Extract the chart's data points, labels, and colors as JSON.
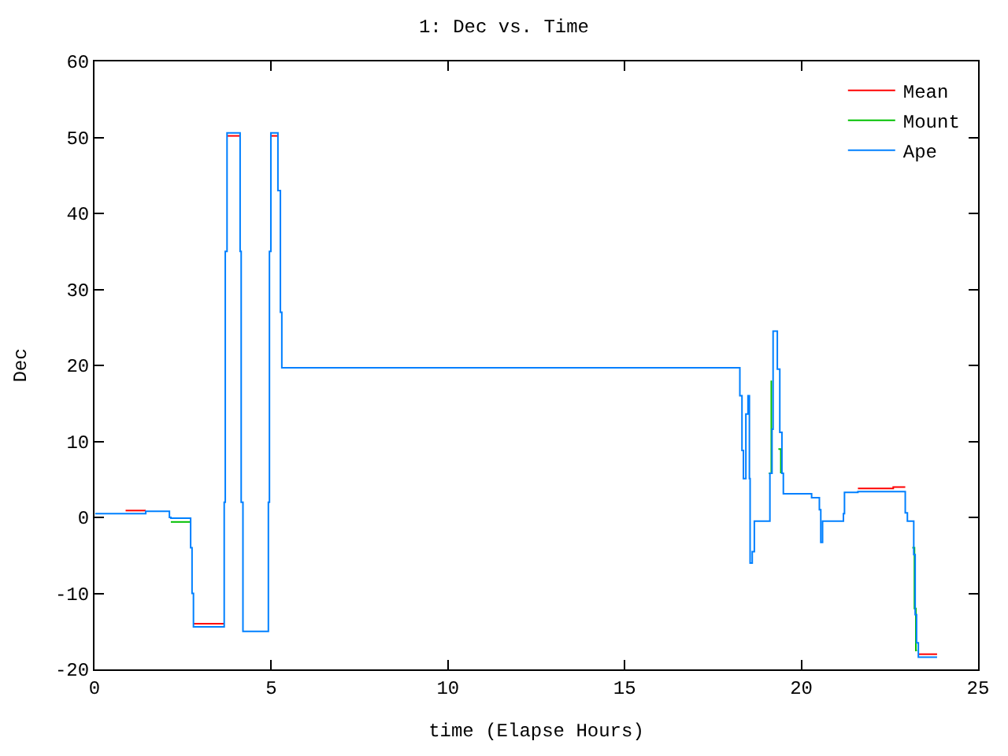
{
  "chart_data": {
    "type": "step",
    "title": "1: Dec vs. Time",
    "xlabel": "time (Elapse Hours)",
    "ylabel": "Dec",
    "xlim": [
      0,
      25
    ],
    "xticks": [
      0,
      5,
      10,
      15,
      20,
      25
    ],
    "ylim": [
      -20,
      60
    ],
    "yticks": [
      -20,
      -10,
      0,
      10,
      20,
      30,
      40,
      50,
      60
    ],
    "legend": "top right",
    "marker": "none",
    "line_style": "solid",
    "series": [
      {
        "name": "Mean",
        "color": "#ff0000",
        "x": [
          0.88,
          1.45,
          1.46,
          2.8,
          3.67,
          3.68,
          3.75,
          4.12,
          4.13,
          4.99,
          5.19,
          5.2,
          21.6,
          22.6,
          22.94,
          22.95,
          23.31,
          23.84
        ],
        "values": [
          0.9,
          0.9,
          null,
          -14.0,
          -14.0,
          null,
          50.2,
          50.2,
          null,
          50.2,
          50.2,
          null,
          3.8,
          4.0,
          4.0,
          null,
          -18.0,
          -18.0
        ]
      },
      {
        "name": "Mount",
        "color": "#00c000",
        "x": [
          2.16,
          2.72,
          2.73,
          19.08,
          19.15,
          19.19,
          19.35,
          19.42,
          19.43,
          23.14,
          23.2,
          23.24,
          23.27
        ],
        "values": [
          -0.6,
          -0.6,
          null,
          5.8,
          18,
          null,
          9,
          5.8,
          null,
          -4,
          -12,
          -17.5,
          -17.5
        ]
      },
      {
        "name": "Ape",
        "color": "#0080ff",
        "x": [
          0.02,
          1.45,
          2.12,
          2.16,
          2.72,
          2.76,
          2.8,
          3.67,
          3.7,
          3.75,
          4.12,
          4.15,
          4.2,
          4.92,
          4.95,
          4.99,
          5.19,
          5.26,
          5.3,
          18.26,
          18.32,
          18.36,
          18.43,
          18.49,
          18.53,
          18.55,
          18.61,
          18.67,
          19.11,
          19.17,
          19.2,
          19.32,
          19.39,
          19.45,
          19.49,
          20.29,
          20.51,
          20.55,
          20.6,
          21.19,
          21.22,
          21.6,
          22.94,
          23.0,
          23.18,
          23.22,
          23.26,
          23.31,
          23.84
        ],
        "values": [
          0.5,
          0.8,
          0.0,
          -0.1,
          -4,
          -10,
          -14.4,
          2,
          35,
          50.6,
          35,
          2,
          -15,
          2,
          35,
          50.6,
          43,
          27,
          19.7,
          16,
          8.8,
          5.1,
          13.6,
          16,
          5.1,
          -6,
          -4.5,
          -0.5,
          5.8,
          11.6,
          24.5,
          19.5,
          11.2,
          5.8,
          3.1,
          2.6,
          1,
          -3.3,
          -0.5,
          0.5,
          3.3,
          3.4,
          0.6,
          -0.5,
          -4.9,
          -12.8,
          -16.5,
          -18.4,
          -18.4
        ]
      }
    ]
  }
}
